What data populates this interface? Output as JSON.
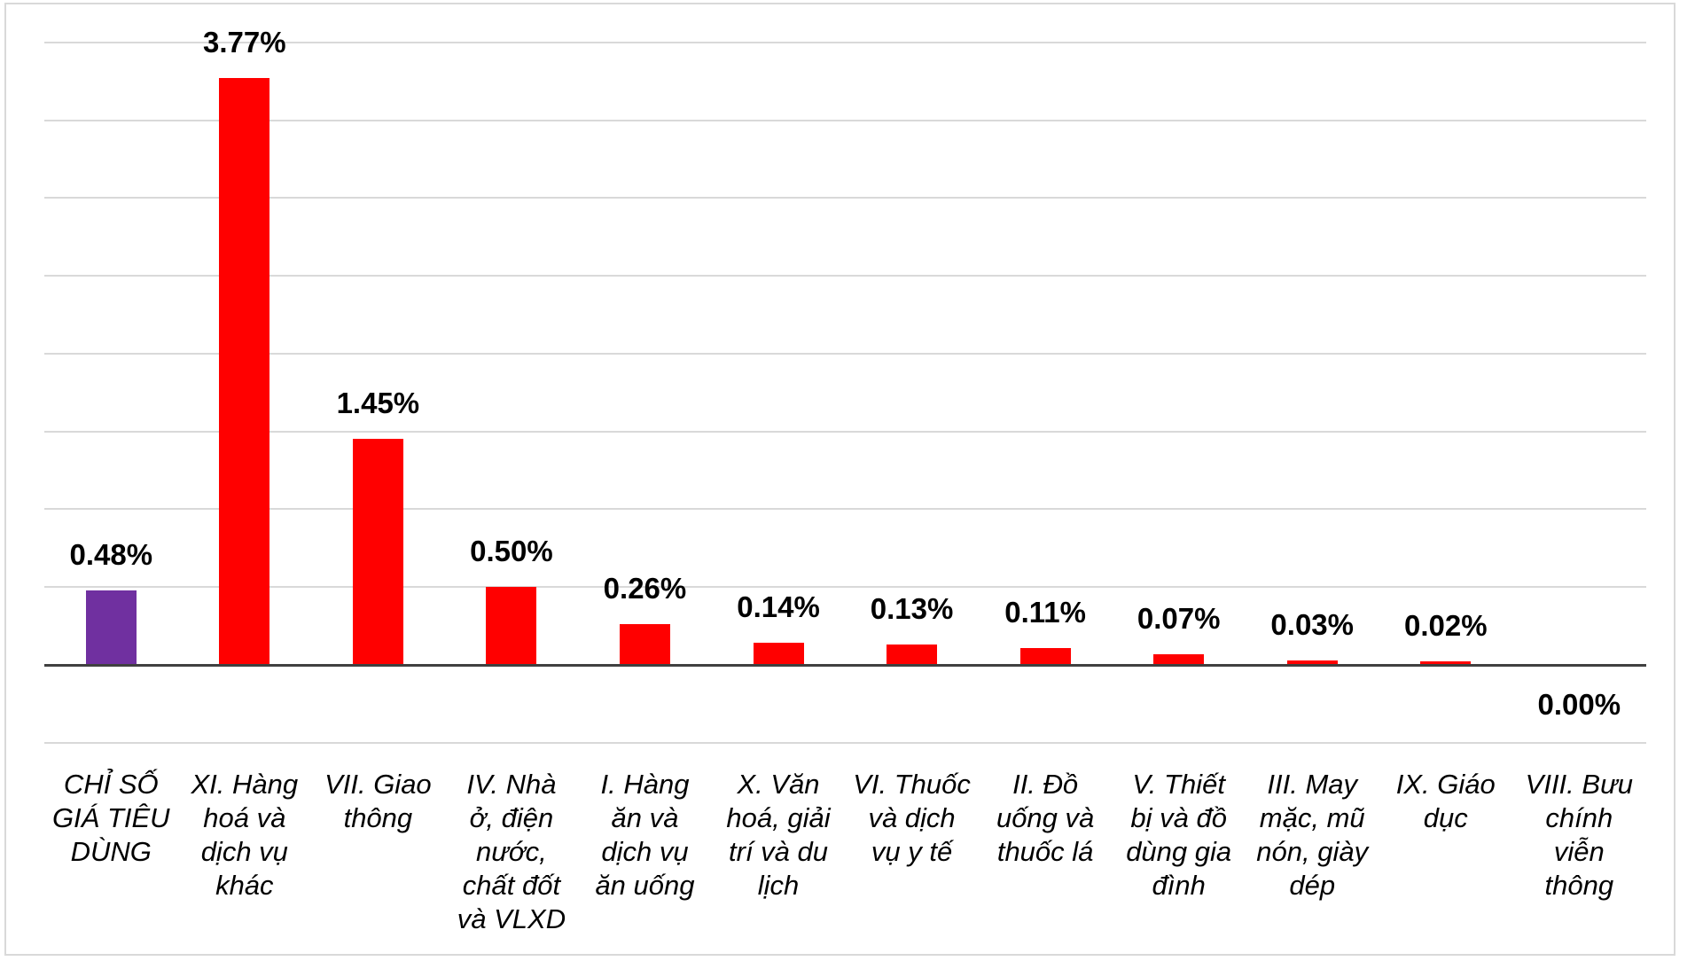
{
  "chart_data": {
    "type": "bar",
    "title": "",
    "xlabel": "",
    "ylabel": "",
    "legend": "none",
    "grid": true,
    "ylim": [
      -0.5,
      4.0
    ],
    "grid_step": 0.5,
    "categories": [
      "CHỈ SỐ\nGIÁ TIÊU\nDÙNG",
      "XI. Hàng\nhoá và\ndịch vụ\nkhác",
      "VII. Giao\nthông",
      "IV. Nhà\nở, điện\nnước,\nchất đốt\nvà VLXD",
      "I. Hàng\năn và\ndịch vụ\năn uống",
      "X. Văn\nhoá, giải\ntrí và du\nlịch",
      "VI. Thuốc\nvà dịch\nvụ y tế",
      "II. Đồ\nuống và\nthuốc lá",
      "V. Thiết\nbị và đồ\ndùng gia\nđình",
      "III. May\nmặc, mũ\nnón, giày\ndép",
      "IX. Giáo\ndục",
      "VIII. Bưu\nchính\nviễn\nthông"
    ],
    "values": [
      0.48,
      3.77,
      1.45,
      0.5,
      0.26,
      0.14,
      0.13,
      0.11,
      0.07,
      0.03,
      0.02,
      0.0
    ],
    "value_labels": [
      "0.48%",
      "3.77%",
      "1.45%",
      "0.50%",
      "0.26%",
      "0.14%",
      "0.13%",
      "0.11%",
      "0.07%",
      "0.03%",
      "0.02%",
      "0.00%"
    ],
    "bar_colors": [
      "#7030A0",
      "#FF0000",
      "#FF0000",
      "#FF0000",
      "#FF0000",
      "#FF0000",
      "#FF0000",
      "#FF0000",
      "#FF0000",
      "#FF0000",
      "#FF0000",
      "#FF0000"
    ],
    "colors": {
      "gridline": "#d9d9d9",
      "axis_line": "#404040",
      "chart_border": "#d9d9d9",
      "label_text": "#000000",
      "background": "#ffffff"
    }
  }
}
